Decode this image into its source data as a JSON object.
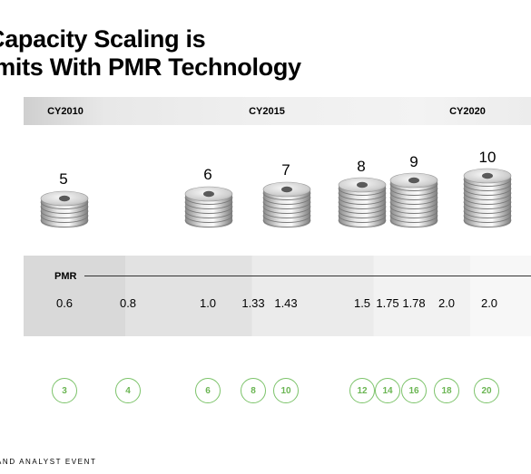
{
  "title": {
    "line1": "Capacity Scaling is",
    "line2": "imits With PMR Technology"
  },
  "years": [
    "CY2010",
    "CY2015",
    "CY2020"
  ],
  "stacks": [
    {
      "label": "5",
      "platters": 5
    },
    {
      "label": "6",
      "platters": 6
    },
    {
      "label": "7",
      "platters": 7
    },
    {
      "label": "8",
      "platters": 8
    },
    {
      "label": "9",
      "platters": 9
    },
    {
      "label": "10",
      "platters": 10
    }
  ],
  "pmr": {
    "label": "PMR",
    "values": [
      "0.6",
      "0.8",
      "1.0",
      "1.33",
      "1.43",
      "1.5",
      "1.75",
      "1.78",
      "2.0",
      "2.0"
    ]
  },
  "capacities": [
    "3",
    "4",
    "6",
    "8",
    "10",
    "12",
    "14",
    "16",
    "18",
    "20"
  ],
  "footer": "AND ANALYST EVENT",
  "colors": {
    "accent_green": "#7cc36a",
    "band_gray": "#e6e6e6"
  }
}
